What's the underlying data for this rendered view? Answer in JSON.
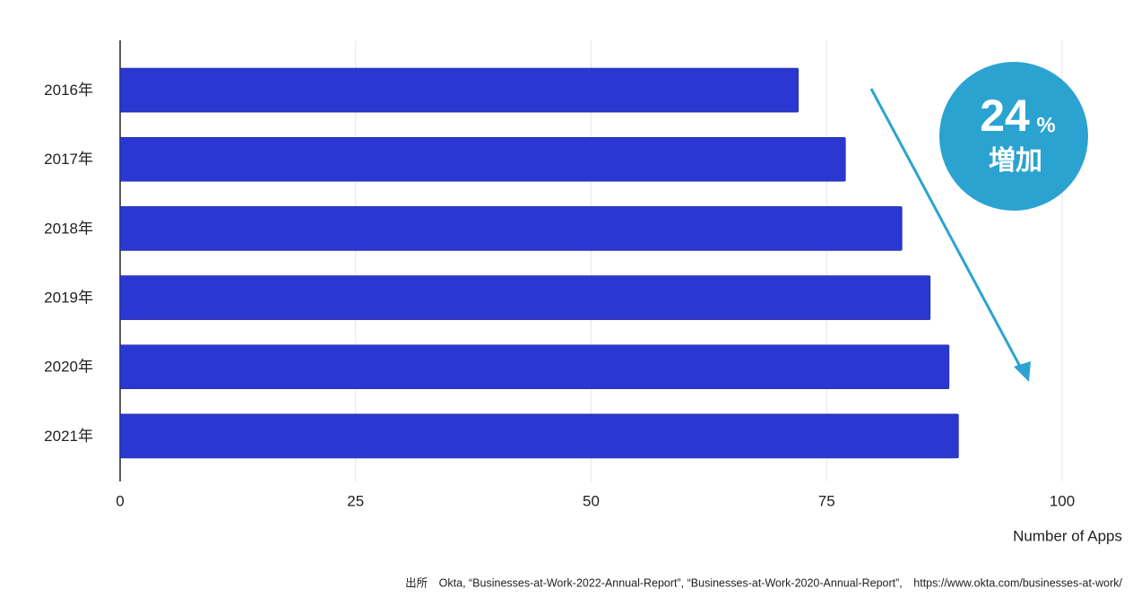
{
  "chart_data": {
    "type": "hbar",
    "categories": [
      "2016年",
      "2017年",
      "2018年",
      "2019年",
      "2020年",
      "2021年"
    ],
    "values": [
      72,
      77,
      83,
      86,
      88,
      89
    ],
    "color": "#2a38d1",
    "xlim": [
      0,
      100
    ],
    "xticks": [
      0,
      25,
      50,
      75,
      100
    ],
    "grid": true,
    "x_label": "Number of Apps",
    "annotation": {
      "number": "24",
      "unit": "%",
      "text": "増加",
      "color": "#2ba3d1"
    },
    "source": "出所　Okta, “Businesses-at-Work-2022-Annual-Report”, “Businesses-at-Work-2020-Annual-Report”,　https://www.okta.com/businesses-at-work/"
  }
}
